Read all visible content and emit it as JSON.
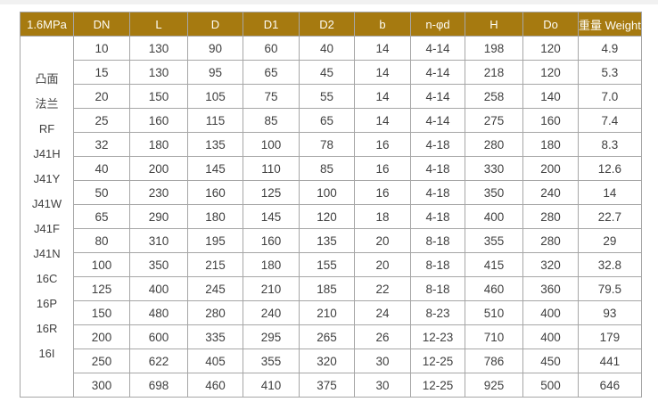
{
  "colors": {
    "header_bg": "#a67a10",
    "header_text": "#fdfcf5",
    "grid_border": "#a6a6a6",
    "body_text": "#3f3f3f"
  },
  "table": {
    "pressure_header": "1.6MPa",
    "column_headers": [
      "DN",
      "L",
      "D",
      "D1",
      "D2",
      "b",
      "n-φd",
      "H",
      "Do",
      "重量 Weight"
    ],
    "flange_type_lines": [
      "凸面",
      "法兰",
      "RF",
      "J41H",
      "J41Y",
      "J41W",
      "J41F",
      "J41N",
      "16C",
      "16P",
      "16R",
      "16I"
    ],
    "rows": [
      [
        "10",
        "130",
        "90",
        "60",
        "40",
        "14",
        "4-14",
        "198",
        "120",
        "4.9"
      ],
      [
        "15",
        "130",
        "95",
        "65",
        "45",
        "14",
        "4-14",
        "218",
        "120",
        "5.3"
      ],
      [
        "20",
        "150",
        "105",
        "75",
        "55",
        "14",
        "4-14",
        "258",
        "140",
        "7.0"
      ],
      [
        "25",
        "160",
        "115",
        "85",
        "65",
        "14",
        "4-14",
        "275",
        "160",
        "7.4"
      ],
      [
        "32",
        "180",
        "135",
        "100",
        "78",
        "16",
        "4-18",
        "280",
        "180",
        "8.3"
      ],
      [
        "40",
        "200",
        "145",
        "110",
        "85",
        "16",
        "4-18",
        "330",
        "200",
        "12.6"
      ],
      [
        "50",
        "230",
        "160",
        "125",
        "100",
        "16",
        "4-18",
        "350",
        "240",
        "14"
      ],
      [
        "65",
        "290",
        "180",
        "145",
        "120",
        "18",
        "4-18",
        "400",
        "280",
        "22.7"
      ],
      [
        "80",
        "310",
        "195",
        "160",
        "135",
        "20",
        "8-18",
        "355",
        "280",
        "29"
      ],
      [
        "100",
        "350",
        "215",
        "180",
        "155",
        "20",
        "8-18",
        "415",
        "320",
        "32.8"
      ],
      [
        "125",
        "400",
        "245",
        "210",
        "185",
        "22",
        "8-18",
        "460",
        "360",
        "79.5"
      ],
      [
        "150",
        "480",
        "280",
        "240",
        "210",
        "24",
        "8-23",
        "510",
        "400",
        "93"
      ],
      [
        "200",
        "600",
        "335",
        "295",
        "265",
        "26",
        "12-23",
        "710",
        "400",
        "179"
      ],
      [
        "250",
        "622",
        "405",
        "355",
        "320",
        "30",
        "12-25",
        "786",
        "450",
        "441"
      ],
      [
        "300",
        "698",
        "460",
        "410",
        "375",
        "30",
        "12-25",
        "925",
        "500",
        "646"
      ]
    ]
  }
}
